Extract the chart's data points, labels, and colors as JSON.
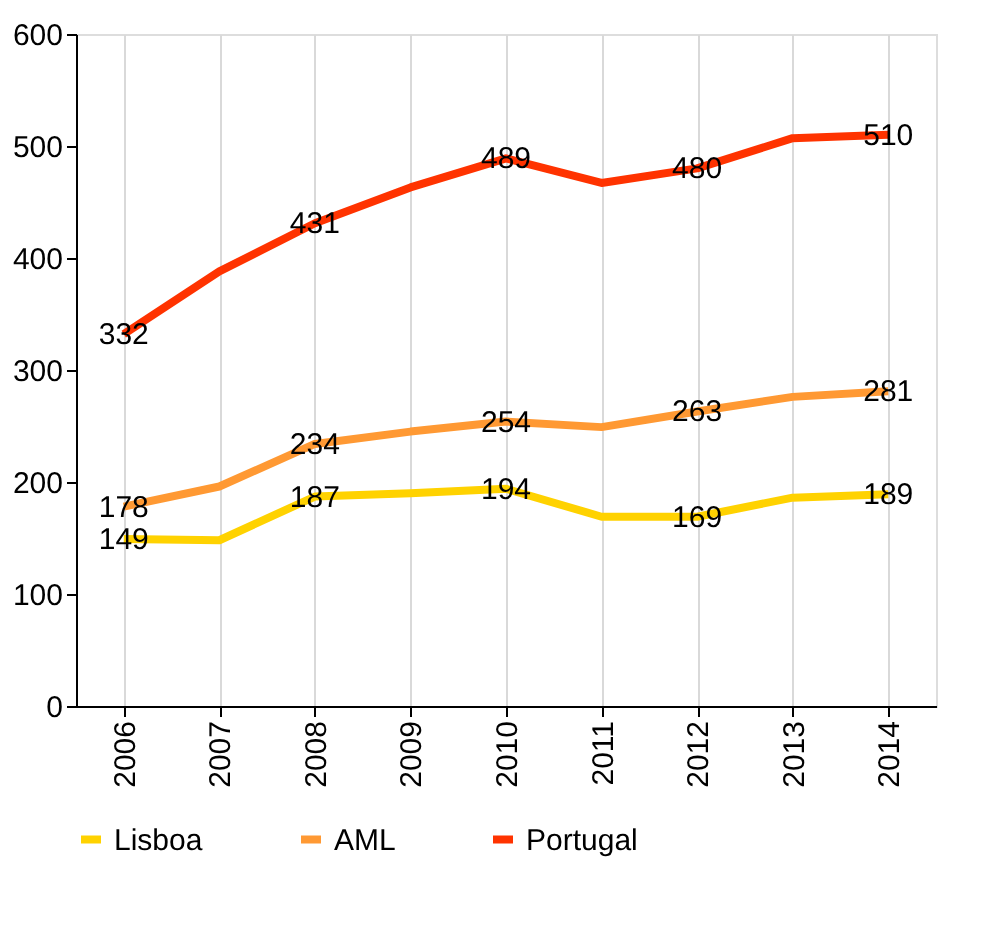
{
  "chart_data": {
    "type": "line",
    "categories": [
      "2006",
      "2007",
      "2008",
      "2009",
      "2010",
      "2011",
      "2012",
      "2013",
      "2014"
    ],
    "series": [
      {
        "name": "Lisboa",
        "color": "#ffd200",
        "values": [
          149,
          148,
          187,
          190,
          194,
          169,
          169,
          186,
          189
        ],
        "value_labels": [
          "149",
          null,
          "187",
          null,
          "194",
          null,
          "169",
          null,
          "189"
        ]
      },
      {
        "name": "AML",
        "color": "#ff9933",
        "values": [
          178,
          196,
          234,
          245,
          254,
          249,
          263,
          276,
          281
        ],
        "value_labels": [
          "178",
          null,
          "234",
          null,
          "254",
          null,
          "263",
          null,
          "281"
        ]
      },
      {
        "name": "Portugal",
        "color": "#ff3300",
        "values": [
          332,
          388,
          431,
          463,
          489,
          467,
          480,
          507,
          510
        ],
        "value_labels": [
          "332",
          null,
          "431",
          null,
          "489",
          null,
          "480",
          null,
          "510"
        ]
      }
    ],
    "ylim": [
      0,
      600
    ],
    "yticks": [
      0,
      100,
      200,
      300,
      400,
      500,
      600
    ],
    "grid": "x",
    "legend": "bottom",
    "marker": "none",
    "line_style": "solid"
  }
}
